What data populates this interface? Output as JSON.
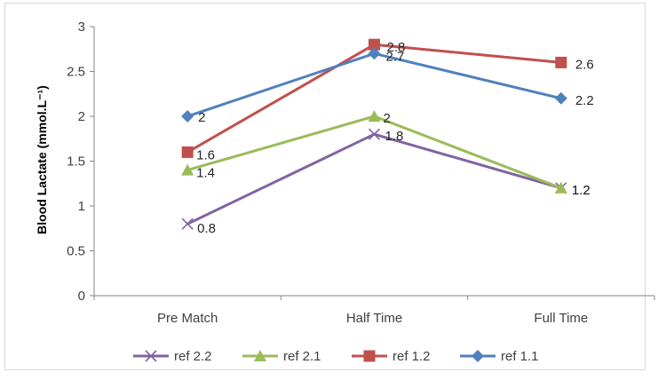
{
  "chart_data": {
    "type": "line",
    "title": "",
    "xlabel": "",
    "ylabel": "Blood Lactate (mmol.L⁻¹)",
    "ylim": [
      0,
      3
    ],
    "yticks": [
      "0",
      "0.5",
      "1",
      "1.5",
      "2",
      "2.5",
      "3"
    ],
    "categories": [
      "Pre Match",
      "Half Time",
      "Full Time"
    ],
    "grid": false,
    "legend_position": "bottom",
    "series": [
      {
        "name": "ref 2.2",
        "values": [
          0.8,
          1.8,
          1.2
        ],
        "labels": [
          "0.8",
          "1.8",
          "1.2"
        ],
        "color": "#8064a2",
        "marker": "x"
      },
      {
        "name": "ref 2.1",
        "values": [
          1.4,
          2.0,
          1.2
        ],
        "labels": [
          "1.4",
          "2",
          "1.2"
        ],
        "color": "#9bbb59",
        "marker": "triangle"
      },
      {
        "name": "ref 1.2",
        "values": [
          1.6,
          2.8,
          2.6
        ],
        "labels": [
          "1.6",
          "2.8",
          "2.6"
        ],
        "color": "#c0504d",
        "marker": "square"
      },
      {
        "name": "ref 1.1",
        "values": [
          2.0,
          2.7,
          2.2
        ],
        "labels": [
          "2",
          "2.7",
          "2.2"
        ],
        "color": "#4f81bd",
        "marker": "diamond"
      }
    ]
  }
}
